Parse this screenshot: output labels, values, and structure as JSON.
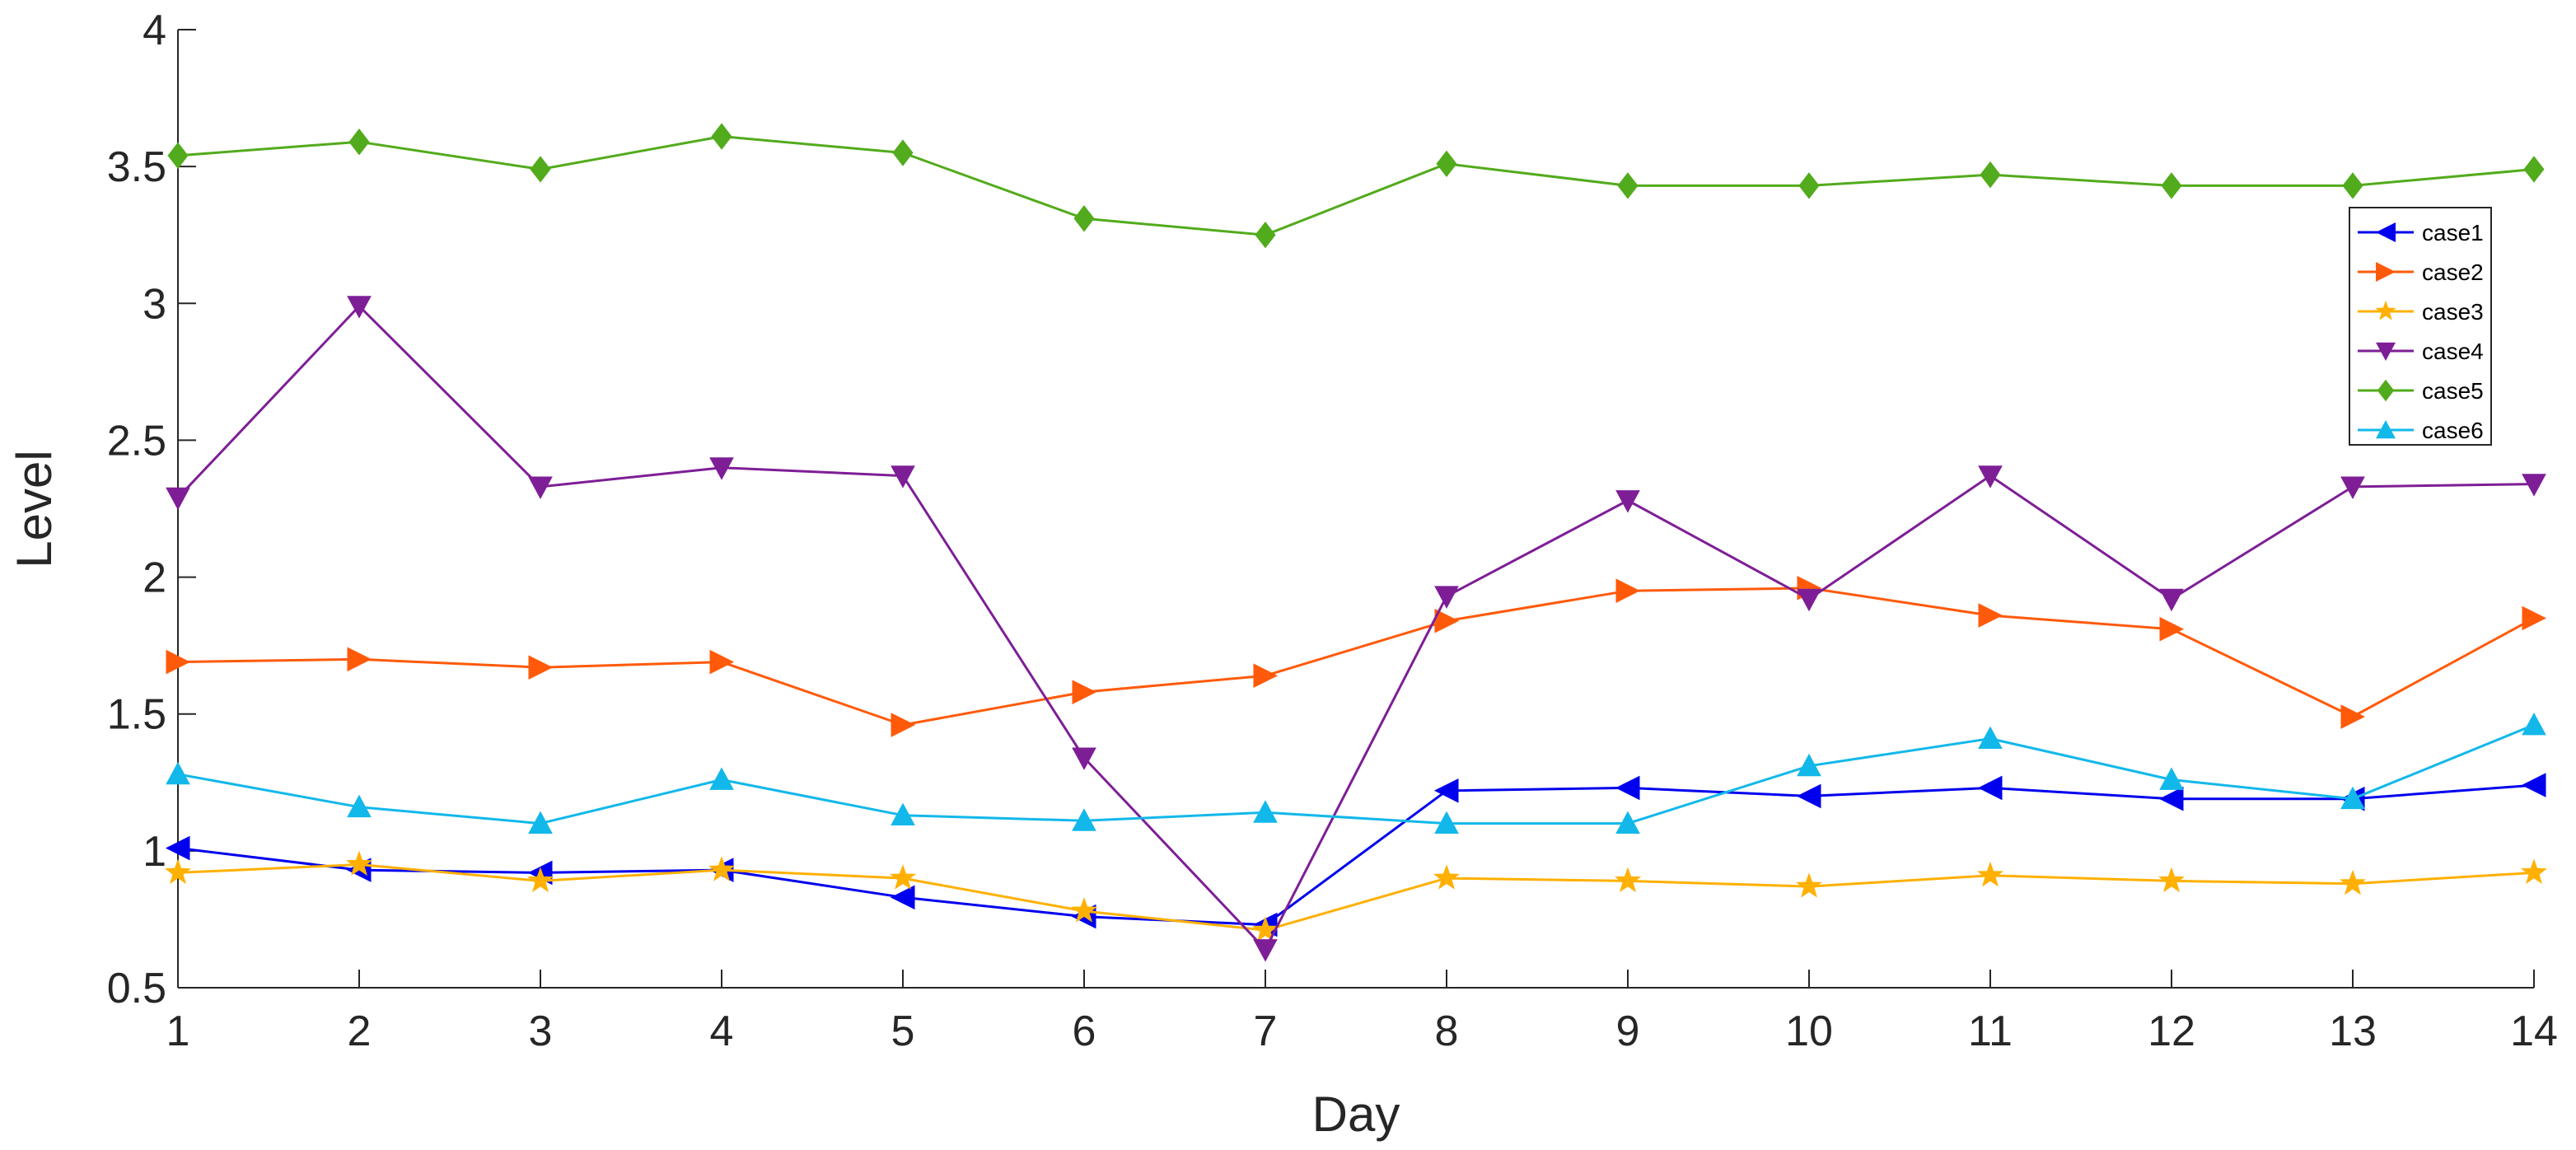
{
  "chart_data": {
    "type": "line",
    "title": "",
    "xlabel": "Day",
    "ylabel": "Level",
    "xlim": [
      1,
      14
    ],
    "ylim": [
      0.5,
      4
    ],
    "xticks": [
      "1",
      "2",
      "3",
      "4",
      "5",
      "6",
      "7",
      "8",
      "9",
      "10",
      "11",
      "12",
      "13",
      "14"
    ],
    "yticks": [
      "0.5",
      "1",
      "1.5",
      "2",
      "2.5",
      "3",
      "3.5",
      "4"
    ],
    "grid": false,
    "legend_position": "top-right",
    "x": [
      1,
      2,
      3,
      4,
      5,
      6,
      7,
      8,
      9,
      10,
      11,
      12,
      13,
      14
    ],
    "series": [
      {
        "name": "case1",
        "color": "#0000ee",
        "marker": "triangle-left",
        "values": [
          1.01,
          0.93,
          0.92,
          0.93,
          0.83,
          0.76,
          0.73,
          1.22,
          1.23,
          1.2,
          1.23,
          1.19,
          1.19,
          1.24
        ]
      },
      {
        "name": "case2",
        "color": "#ff5a0a",
        "marker": "triangle-right",
        "values": [
          1.69,
          1.7,
          1.67,
          1.69,
          1.46,
          1.58,
          1.64,
          1.84,
          1.95,
          1.96,
          1.86,
          1.81,
          1.49,
          1.85
        ]
      },
      {
        "name": "case3",
        "color": "#ffb000",
        "marker": "star",
        "values": [
          0.92,
          0.95,
          0.89,
          0.93,
          0.9,
          0.78,
          0.71,
          0.9,
          0.89,
          0.87,
          0.91,
          0.89,
          0.88,
          0.92
        ]
      },
      {
        "name": "case4",
        "color": "#7e1e96",
        "marker": "triangle-down",
        "values": [
          2.29,
          2.99,
          2.33,
          2.4,
          2.37,
          1.34,
          0.64,
          1.93,
          2.28,
          1.92,
          2.37,
          1.92,
          2.33,
          2.34
        ]
      },
      {
        "name": "case5",
        "color": "#52ab1c",
        "marker": "diamond",
        "values": [
          3.54,
          3.59,
          3.49,
          3.61,
          3.55,
          3.31,
          3.25,
          3.51,
          3.43,
          3.43,
          3.47,
          3.43,
          3.43,
          3.49
        ]
      },
      {
        "name": "case6",
        "color": "#12b8ea",
        "marker": "triangle-up",
        "values": [
          1.28,
          1.16,
          1.1,
          1.26,
          1.13,
          1.11,
          1.14,
          1.1,
          1.1,
          1.31,
          1.41,
          1.26,
          1.19,
          1.46
        ]
      }
    ]
  }
}
